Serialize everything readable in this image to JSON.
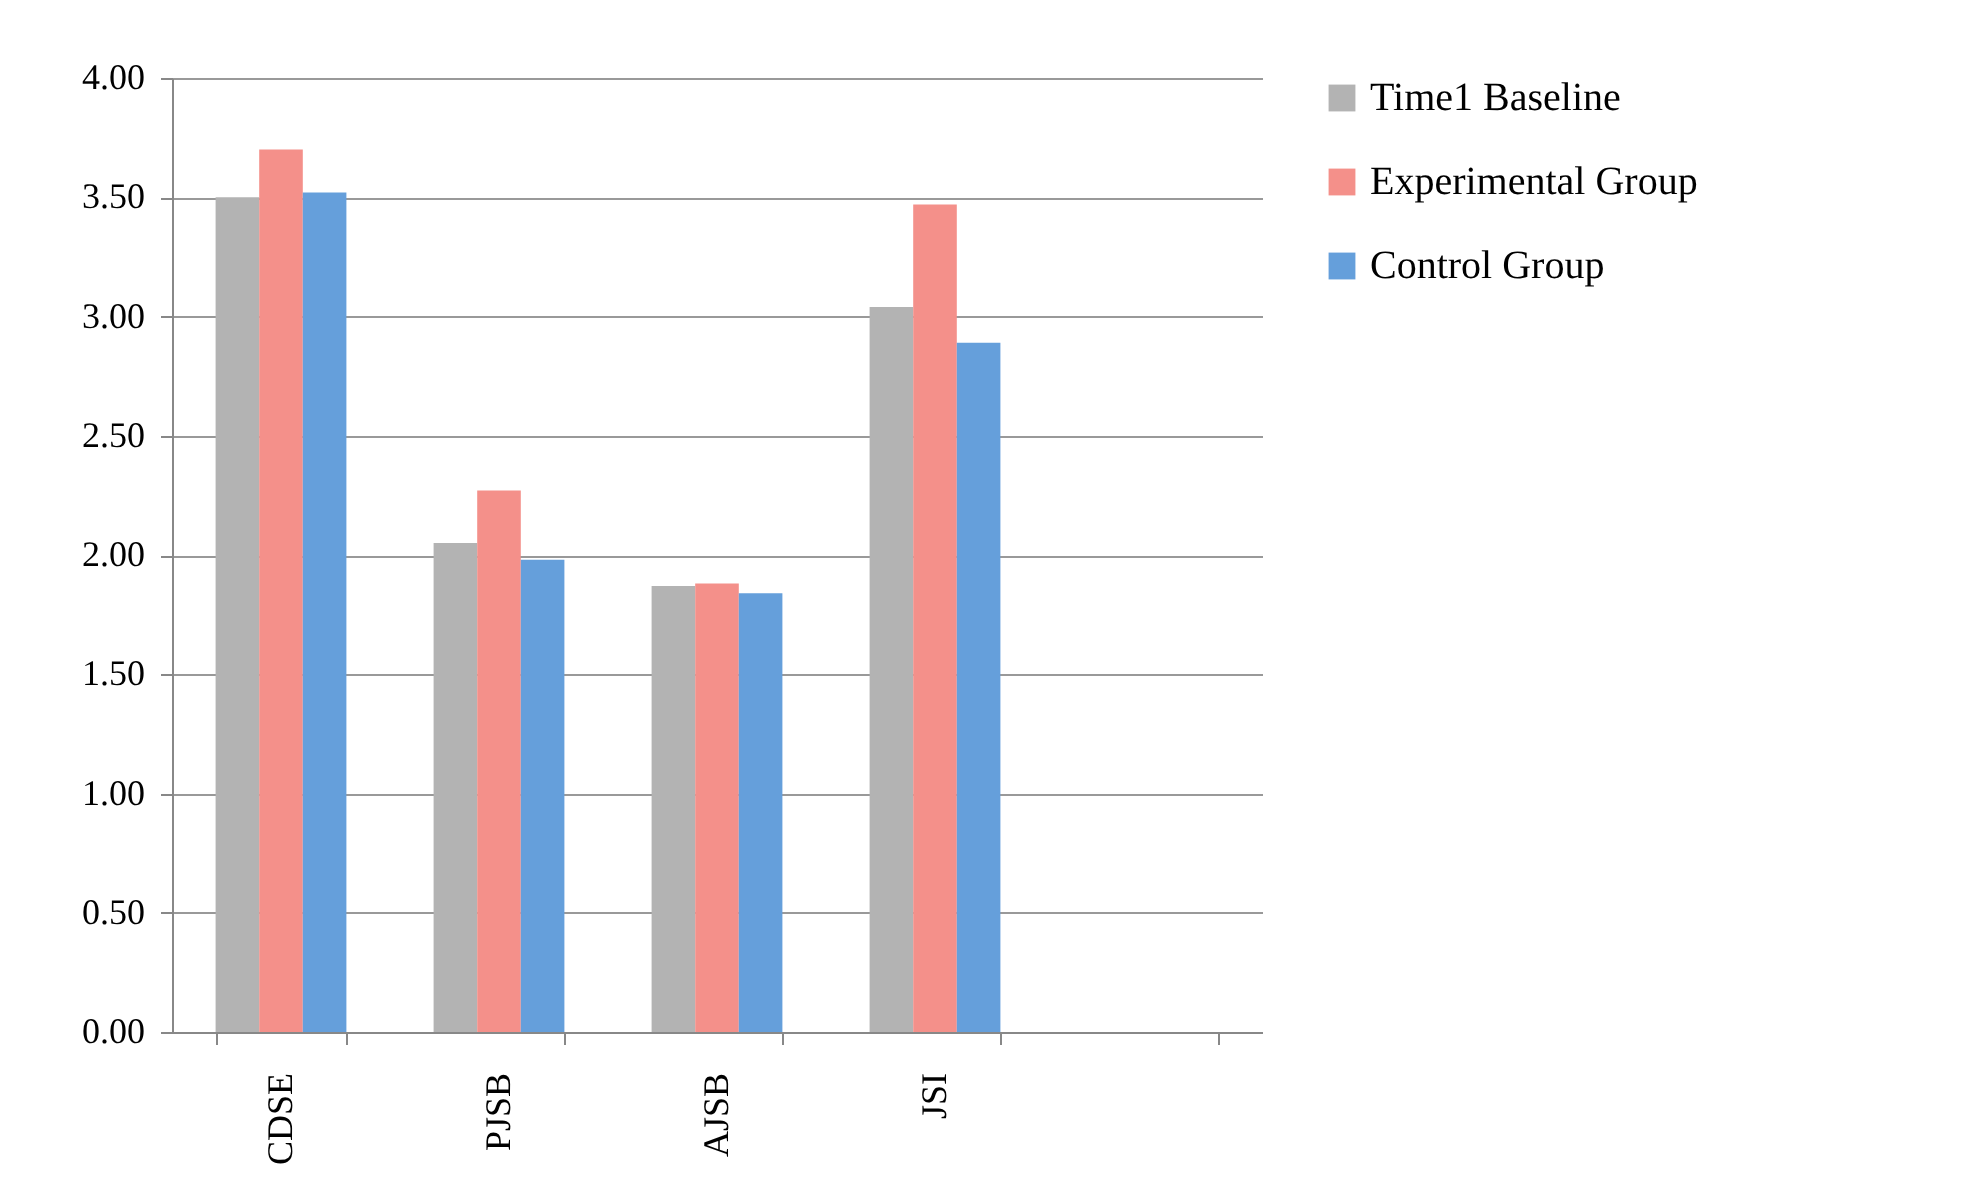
{
  "chart_data": {
    "type": "bar",
    "categories": [
      "CDSE",
      "PJSB",
      "AJSB",
      "JSI",
      null
    ],
    "series": [
      {
        "name": "Time1 Baseline",
        "color": "#b3b3b3",
        "values": [
          3.5,
          2.05,
          1.87,
          3.04,
          null
        ]
      },
      {
        "name": "Experimental Group",
        "color": "#f4908a",
        "values": [
          3.7,
          2.27,
          1.88,
          3.47,
          null
        ]
      },
      {
        "name": "Control Group",
        "color": "#659fdb",
        "values": [
          3.52,
          1.98,
          1.84,
          2.89,
          null
        ]
      }
    ],
    "ylim": [
      0,
      4
    ],
    "yticks": [
      {
        "value": 0,
        "label": "0.00"
      },
      {
        "value": 0.5,
        "label": "0.50"
      },
      {
        "value": 1,
        "label": "1.00"
      },
      {
        "value": 1.5,
        "label": "1.50"
      },
      {
        "value": 2,
        "label": "2.00"
      },
      {
        "value": 2.5,
        "label": "2.50"
      },
      {
        "value": 3,
        "label": "3.00"
      },
      {
        "value": 3.5,
        "label": "3.50"
      },
      {
        "value": 4,
        "label": "4.00"
      }
    ],
    "grid": "y",
    "legend": "right"
  }
}
